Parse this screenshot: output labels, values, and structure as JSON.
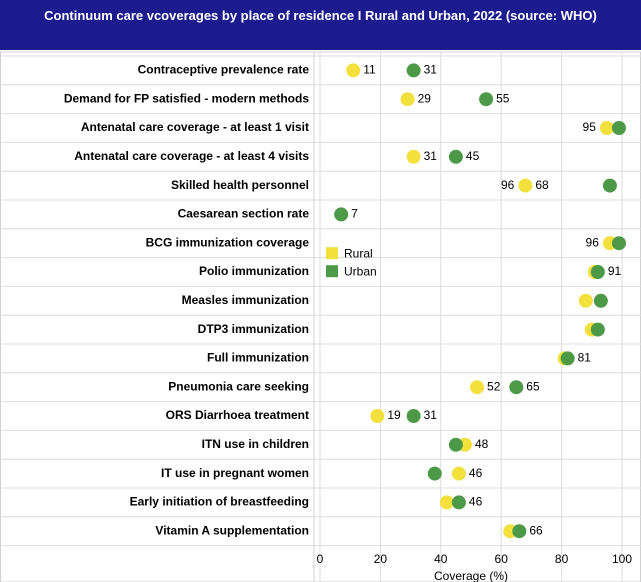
{
  "chart_data": {
    "type": "dot",
    "title": "Continuum care vcoverages by place of residence  I Rural and Urban, 2022 (source: WHO)",
    "x_label": "Coverage (%)",
    "categories": [
      "Contraceptive prevalence rate",
      "Demand for FP satisfied - modern methods",
      "Antenatal care coverage - at least 1 visit",
      "Antenatal care coverage - at least 4 visits",
      "Skilled health personnel",
      "Caesarean section rate",
      "BCG immunization coverage",
      "Polio immunization",
      "Measles immunization",
      "DTP3 immunization",
      "Full immunization",
      "Pneumonia care seeking",
      "ORS Diarrhoea treatment",
      "ITN use in children",
      "IT use in pregnant women",
      "Early initiation of breastfeeding",
      "Vitamin A supplementation"
    ],
    "series": [
      {
        "name": "Rural",
        "color": "#f2e03c",
        "values": [
          11,
          29,
          95,
          31,
          68,
          null,
          96,
          91,
          88,
          90,
          81,
          52,
          19,
          48,
          46,
          42,
          63
        ],
        "value_labels": [
          "11",
          "29",
          "95",
          "31",
          "68",
          null,
          "96",
          "91",
          null,
          null,
          "81",
          "52",
          "19",
          "48",
          "46",
          null,
          null
        ]
      },
      {
        "name": "Urban",
        "color": "#4c9a48",
        "values": [
          31,
          55,
          99,
          45,
          96,
          7,
          99,
          92,
          93,
          92,
          82,
          65,
          31,
          45,
          38,
          46,
          66
        ],
        "value_labels": [
          "31",
          "55",
          null,
          "45",
          "96",
          "7",
          null,
          null,
          null,
          null,
          null,
          "65",
          "31",
          null,
          null,
          "46",
          "66"
        ]
      }
    ],
    "xlim": [
      0,
      100
    ],
    "xticks": [
      0,
      20,
      40,
      60,
      80,
      100
    ],
    "grid": true,
    "legend": "inside-left"
  }
}
